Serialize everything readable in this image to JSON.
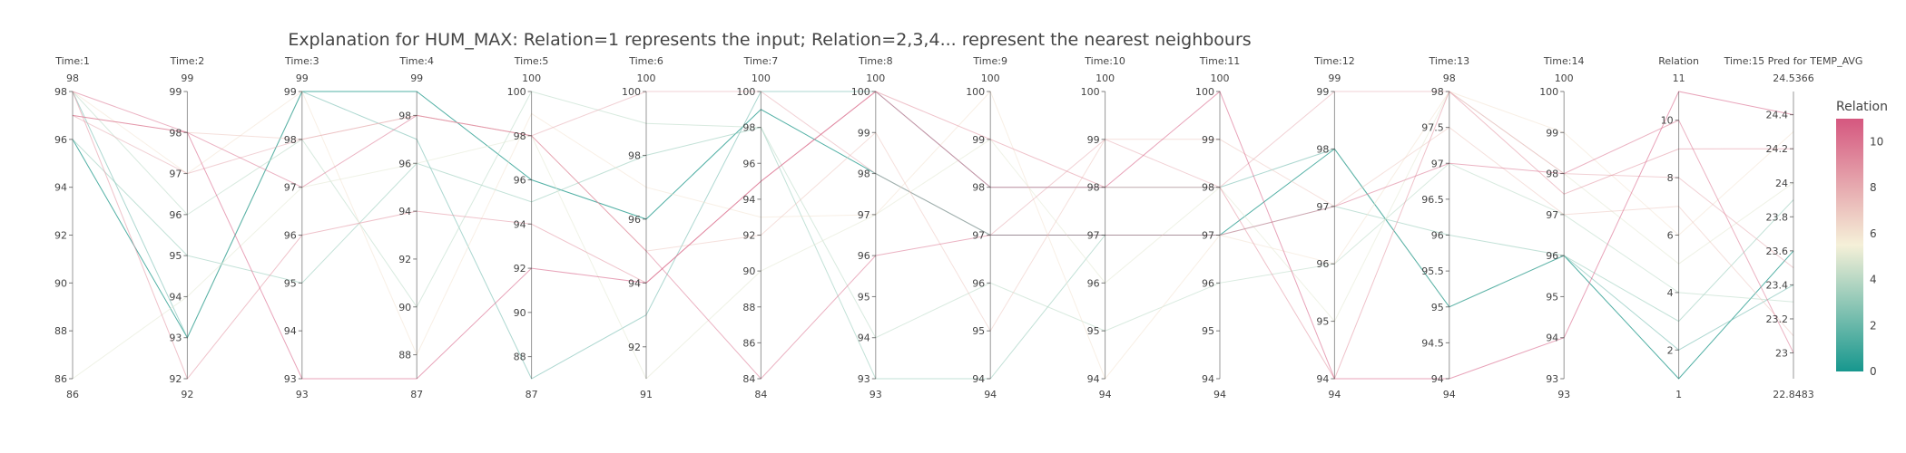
{
  "chart_data": {
    "type": "parallel_coordinates",
    "title": "Explanation for HUM_MAX: Relation=1 represents the input; Relation=2,3,4... represent the nearest neighbours",
    "dimensions": [
      {
        "label": "Time:1",
        "range": [
          86,
          98
        ],
        "ticks": [
          86,
          88,
          90,
          92,
          94,
          96,
          98
        ],
        "min_label": "86",
        "max_label": "98"
      },
      {
        "label": "Time:2",
        "range": [
          92,
          99
        ],
        "ticks": [
          92,
          93,
          94,
          95,
          96,
          97,
          98,
          99
        ],
        "min_label": "92",
        "max_label": "99"
      },
      {
        "label": "Time:3",
        "range": [
          93,
          99
        ],
        "ticks": [
          93,
          94,
          95,
          96,
          97,
          98,
          99
        ],
        "min_label": "93",
        "max_label": "99"
      },
      {
        "label": "Time:4",
        "range": [
          87,
          99
        ],
        "ticks": [
          88,
          90,
          92,
          94,
          96,
          98
        ],
        "min_label": "87",
        "max_label": "99"
      },
      {
        "label": "Time:5",
        "range": [
          87,
          100
        ],
        "ticks": [
          88,
          90,
          92,
          94,
          96,
          98,
          100
        ],
        "min_label": "87",
        "max_label": "100"
      },
      {
        "label": "Time:6",
        "range": [
          91,
          100
        ],
        "ticks": [
          92,
          94,
          96,
          98,
          100
        ],
        "min_label": "91",
        "max_label": "100"
      },
      {
        "label": "Time:7",
        "range": [
          84,
          100
        ],
        "ticks": [
          84,
          86,
          88,
          90,
          92,
          94,
          96,
          98,
          100
        ],
        "min_label": "84",
        "max_label": "100"
      },
      {
        "label": "Time:8",
        "range": [
          93,
          100
        ],
        "ticks": [
          93,
          94,
          95,
          96,
          97,
          98,
          99,
          100
        ],
        "min_label": "93",
        "max_label": "100"
      },
      {
        "label": "Time:9",
        "range": [
          94,
          100
        ],
        "ticks": [
          94,
          95,
          96,
          97,
          98,
          99,
          100
        ],
        "min_label": "94",
        "max_label": "100"
      },
      {
        "label": "Time:10",
        "range": [
          94,
          100
        ],
        "ticks": [
          94,
          95,
          96,
          97,
          98,
          99,
          100
        ],
        "min_label": "94",
        "max_label": "100"
      },
      {
        "label": "Time:11",
        "range": [
          94,
          100
        ],
        "ticks": [
          94,
          95,
          96,
          97,
          98,
          99,
          100
        ],
        "min_label": "94",
        "max_label": "100"
      },
      {
        "label": "Time:12",
        "range": [
          94,
          99
        ],
        "ticks": [
          94,
          95,
          96,
          97,
          98,
          99
        ],
        "min_label": "94",
        "max_label": "99"
      },
      {
        "label": "Time:13",
        "range": [
          94,
          98
        ],
        "ticks": [
          94,
          94.5,
          95,
          95.5,
          96,
          96.5,
          97,
          97.5,
          98
        ],
        "min_label": "94",
        "max_label": "98"
      },
      {
        "label": "Time:14",
        "range": [
          93,
          100
        ],
        "ticks": [
          93,
          94,
          95,
          96,
          97,
          98,
          99,
          100
        ],
        "min_label": "93",
        "max_label": "100"
      },
      {
        "label": "Relation",
        "range": [
          1,
          11
        ],
        "ticks": [
          2,
          4,
          6,
          8,
          10
        ],
        "min_label": "1",
        "max_label": "11"
      },
      {
        "label": "Time:15 Pred for TEMP_AVG",
        "range": [
          22.8483,
          24.5366
        ],
        "ticks": [
          23,
          23.2,
          23.4,
          23.6,
          23.8,
          24,
          24.2,
          24.4
        ],
        "min_label": "22.8483",
        "max_label": "24.5366"
      }
    ],
    "lines": [
      {
        "relation": 1,
        "values": [
          96,
          93,
          99,
          99,
          96,
          96,
          99,
          98,
          97,
          97,
          97,
          98,
          95,
          96,
          1,
          23.6
        ]
      },
      {
        "relation": 2,
        "values": [
          98,
          93,
          99,
          97,
          87,
          93,
          100,
          100,
          98,
          98,
          98,
          98,
          95,
          96,
          2,
          23.4
        ]
      },
      {
        "relation": 3,
        "values": [
          96,
          95,
          95,
          96,
          95,
          98,
          98,
          93,
          94,
          97,
          97,
          97,
          96,
          96,
          3,
          23.9
        ]
      },
      {
        "relation": 4,
        "values": [
          98,
          96,
          98,
          90,
          100,
          99,
          98,
          94,
          96,
          95,
          96,
          96,
          97,
          97,
          4,
          23.3
        ]
      },
      {
        "relation": 5,
        "values": [
          86,
          94,
          97,
          96,
          98,
          91,
          90,
          97,
          99,
          96,
          98,
          95,
          98,
          98,
          5,
          24.0
        ]
      },
      {
        "relation": 6,
        "values": [
          98,
          97,
          99,
          88,
          99,
          97,
          93,
          97,
          100,
          94,
          97,
          96,
          98,
          99,
          6,
          24.3
        ]
      },
      {
        "relation": 7,
        "values": [
          97,
          98,
          98,
          98,
          98,
          95,
          92,
          99,
          95,
          99,
          99,
          97,
          97.5,
          97,
          7,
          23.1
        ]
      },
      {
        "relation": 8,
        "values": [
          97,
          97,
          98,
          98,
          98,
          100,
          100,
          98,
          97,
          99,
          98,
          99,
          98,
          98,
          8,
          23.5
        ]
      },
      {
        "relation": 9,
        "values": [
          98,
          92,
          96,
          94,
          94,
          94,
          95,
          100,
          99,
          98,
          98,
          94,
          98,
          97.5,
          9,
          24.2
        ]
      },
      {
        "relation": 10,
        "values": [
          98,
          98,
          97,
          98,
          98,
          95,
          84,
          96,
          97,
          97,
          97,
          97,
          97,
          98,
          10,
          23.0
        ]
      },
      {
        "relation": 11,
        "values": [
          97,
          98,
          93,
          87,
          92,
          94,
          95,
          100,
          98,
          98,
          100,
          94,
          94,
          94,
          11,
          24.4
        ]
      }
    ],
    "colorscale": {
      "title": "Relation",
      "ticks": [
        0,
        2,
        4,
        6,
        8,
        10
      ],
      "min": 0,
      "max": 11,
      "colors": [
        "#17978e",
        "#f5f0d8",
        "#d5577f"
      ]
    }
  }
}
